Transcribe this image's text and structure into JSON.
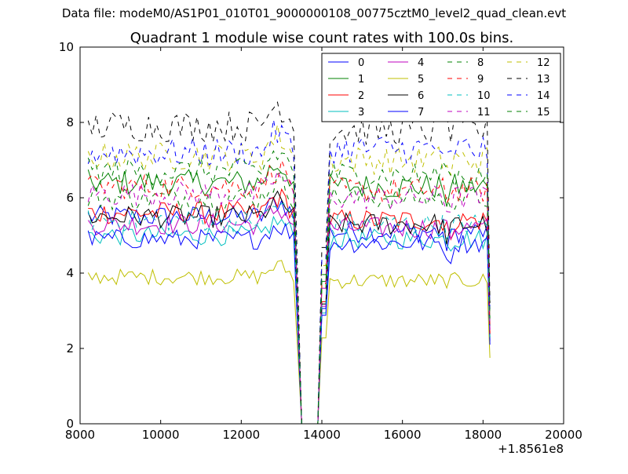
{
  "figure": {
    "suptitle": "Data file: modeM0/AS1P01_010T01_9000000108_00775cztM0_level2_quad_clean.evt"
  },
  "chart_data": {
    "type": "line",
    "title": "Quadrant 1 module wise count rates with 100.0s bins.",
    "xlabel": "",
    "ylabel": "",
    "x_offset_label": "+1.8561e8",
    "xlim": [
      8000,
      20000
    ],
    "ylim": [
      0,
      10
    ],
    "xticks": [
      8000,
      10000,
      12000,
      14000,
      16000,
      18000,
      20000
    ],
    "xtick_labels": [
      "8000",
      "10000",
      "12000",
      "14000",
      "16000",
      "18000",
      "20000"
    ],
    "yticks": [
      0,
      2,
      4,
      6,
      8,
      10
    ],
    "ytick_labels": [
      "0",
      "2",
      "4",
      "6",
      "8",
      "10"
    ],
    "grid": false,
    "legend_location": "top-right",
    "legend_columns": 4,
    "x_bin_size": 100,
    "x_range_data": [
      8200,
      18150
    ],
    "gap_range": [
      13400,
      14050
    ],
    "colors": {
      "blue": "#0000ff",
      "green": "#008000",
      "red": "#ff0000",
      "cyan": "#00bfbf",
      "magenta": "#bf00bf",
      "olive": "#bfbf00",
      "black": "#000000"
    },
    "series": [
      {
        "name": "0",
        "color": "#0000ff",
        "dash": "solid",
        "level_before": 5.5,
        "level_after": 5.1,
        "end_value": 2.2
      },
      {
        "name": "1",
        "color": "#008000",
        "dash": "solid",
        "level_before": 6.4,
        "level_after": 6.3,
        "end_value": 2.6
      },
      {
        "name": "2",
        "color": "#ff0000",
        "dash": "solid",
        "level_before": 5.6,
        "level_after": 5.4,
        "end_value": 2.4
      },
      {
        "name": "3",
        "color": "#00bfbf",
        "dash": "solid",
        "level_before": 5.0,
        "level_after": 4.9,
        "end_value": 2.3
      },
      {
        "name": "4",
        "color": "#bf00bf",
        "dash": "solid",
        "level_before": 5.3,
        "level_after": 5.2,
        "end_value": 2.5
      },
      {
        "name": "5",
        "color": "#bfbf00",
        "dash": "solid",
        "level_before": 3.9,
        "level_after": 3.8,
        "end_value": 1.75
      },
      {
        "name": "6",
        "color": "#000000",
        "dash": "solid",
        "level_before": 5.5,
        "level_after": 5.3,
        "end_value": 2.3
      },
      {
        "name": "7",
        "color": "#0000ff",
        "dash": "solid",
        "level_before": 4.9,
        "level_after": 4.8,
        "end_value": 2.1
      },
      {
        "name": "8",
        "color": "#008000",
        "dash": "dashed",
        "level_before": 6.0,
        "level_after": 6.0,
        "end_value": 2.6
      },
      {
        "name": "9",
        "color": "#ff0000",
        "dash": "dashed",
        "level_before": 6.3,
        "level_after": 6.2,
        "end_value": 2.4
      },
      {
        "name": "10",
        "color": "#00bfbf",
        "dash": "dashed",
        "level_before": 5.4,
        "level_after": 5.3,
        "end_value": 2.3
      },
      {
        "name": "11",
        "color": "#bf00bf",
        "dash": "dashed",
        "level_before": 6.1,
        "level_after": 6.0,
        "end_value": 2.5
      },
      {
        "name": "12",
        "color": "#bfbf00",
        "dash": "dashed",
        "level_before": 7.1,
        "level_after": 7.0,
        "end_value": 2.9
      },
      {
        "name": "13",
        "color": "#000000",
        "dash": "dashed",
        "level_before": 7.9,
        "level_after": 7.8,
        "end_value": 3.2
      },
      {
        "name": "14",
        "color": "#0000ff",
        "dash": "dashed",
        "level_before": 7.2,
        "level_after": 7.3,
        "end_value": 3.0
      },
      {
        "name": "15",
        "color": "#008000",
        "dash": "dashed",
        "level_before": 6.7,
        "level_after": 6.6,
        "end_value": 2.8
      }
    ]
  }
}
